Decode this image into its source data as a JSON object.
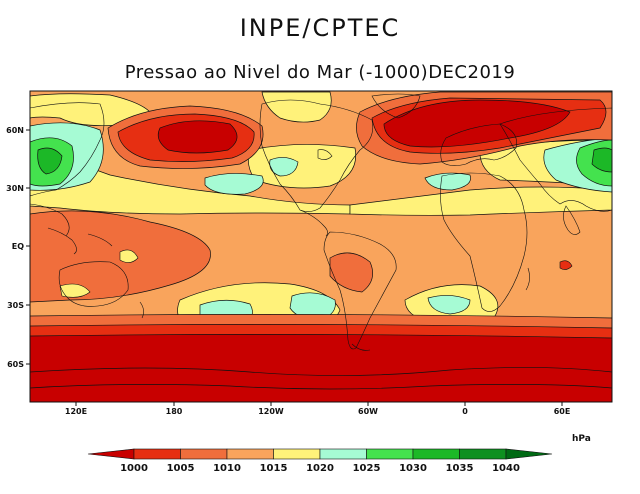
{
  "header": {
    "title": "INPE/CPTEC",
    "subtitle": "Pressao ao Nivel do Mar (-1000)DEC2019"
  },
  "axes": {
    "lat_ticks": [
      "60N",
      "30N",
      "EQ",
      "30S",
      "60S"
    ],
    "lon_ticks": [
      "120E",
      "180",
      "120W",
      "60W",
      "0",
      "60E"
    ]
  },
  "colorbar": {
    "unit": "hPa",
    "levels": [
      "1000",
      "1005",
      "1010",
      "1015",
      "1020",
      "1025",
      "1030",
      "1035",
      "1040"
    ],
    "colors": [
      "#c80000",
      "#e62f12",
      "#f06e3c",
      "#f9a45c",
      "#fff27a",
      "#a6fbd4",
      "#44e24e",
      "#1cb827",
      "#0e9020",
      "#006a14"
    ]
  },
  "legend_colors": {
    "land_border": "#111111",
    "contour": "#111111"
  }
}
